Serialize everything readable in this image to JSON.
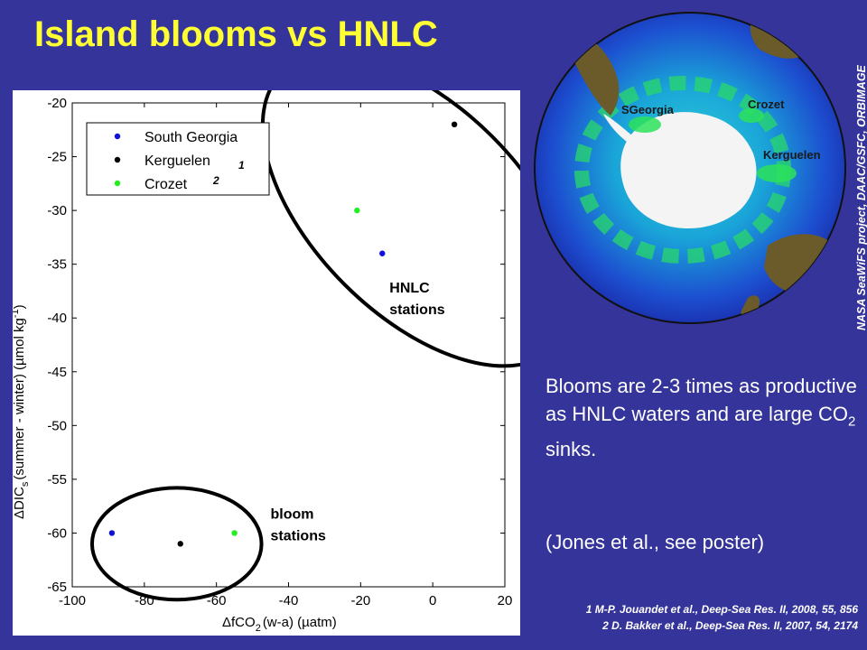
{
  "slide": {
    "title": "Island blooms vs HNLC",
    "summary_parts": [
      "Blooms are 2-3 times as productive as HNLC waters and are large CO",
      "2",
      " sinks."
    ],
    "poster_note": "(Jones et al., see poster)",
    "image_credit": "NASA SeaWiFS project, DAAC/GSFC, ORBIMAGE",
    "references": [
      "1 M-P. Jouandet et al., Deep-Sea Res. II,  2008, 55, 856",
      "2 D. Bakker et al., Deep-Sea Res. II, 2007, 54, 2174"
    ]
  },
  "map": {
    "labels": {
      "sgeorgia": "SGeorgia",
      "crozet": "Crozet",
      "kerguelen": "Kerguelen"
    },
    "colors": {
      "ocean_deep": "#1e3cc8",
      "ocean_mid": "#14a0d2",
      "bloom": "#2ce25a",
      "land": "#6b5a2a",
      "ice": "#f4f4f4"
    }
  },
  "chart_data": {
    "type": "scatter",
    "xlabel_parts": [
      "ΔfCO",
      "2",
      "(w-a) (µatm)"
    ],
    "ylabel_parts": [
      "ΔDIC",
      "s",
      "(summer - winter) (µmol kg",
      "-1",
      ")"
    ],
    "xlim": [
      -100,
      20
    ],
    "ylim": [
      -65,
      -20
    ],
    "xticks": [
      -100,
      -80,
      -60,
      -40,
      -20,
      0,
      20
    ],
    "yticks": [
      -20,
      -25,
      -30,
      -35,
      -40,
      -45,
      -50,
      -55,
      -60,
      -65
    ],
    "legend": {
      "position": "top-left",
      "superscripts": [
        "1",
        "2"
      ]
    },
    "series": [
      {
        "name": "South Georgia",
        "color": "#1010dd",
        "x": [
          -89,
          -14
        ],
        "y": [
          -60,
          -34
        ]
      },
      {
        "name": "Kerguelen",
        "color": "#000000",
        "x": [
          -70,
          6
        ],
        "y": [
          -61,
          -22
        ]
      },
      {
        "name": "Crozet",
        "color": "#22ee22",
        "x": [
          -55,
          -21
        ],
        "y": [
          -60,
          -30
        ]
      }
    ],
    "annotations": [
      {
        "lines": [
          "HNLC",
          "stations"
        ],
        "x": -12,
        "y": -40
      },
      {
        "lines": [
          "bloom",
          "stations"
        ],
        "x": -45,
        "y": -61
      }
    ],
    "groups": [
      {
        "name": "HNLC",
        "cx": -4,
        "cy": -30,
        "rx": 29,
        "ry": 18,
        "rotate": -45
      },
      {
        "name": "bloom",
        "cx": -71,
        "cy": -61,
        "rx": 23.5,
        "ry": 5.2,
        "rotate": 0
      }
    ]
  }
}
